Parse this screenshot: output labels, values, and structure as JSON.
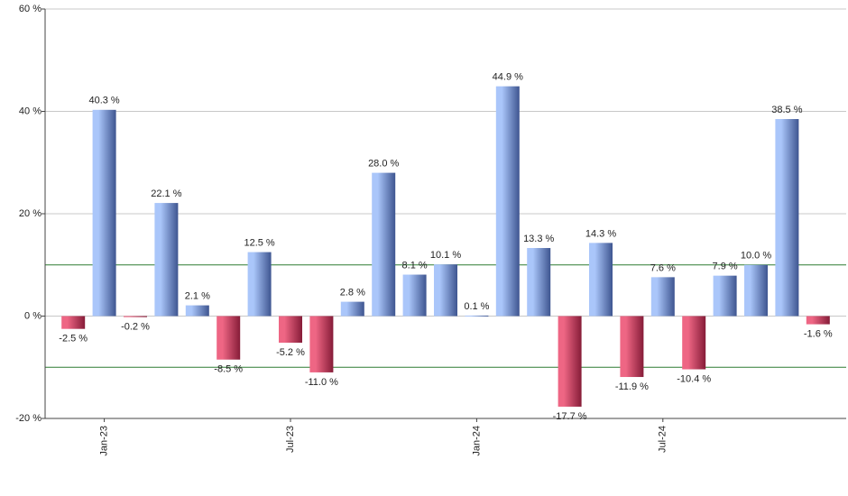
{
  "chart_data": {
    "type": "bar",
    "categories": [
      null,
      "Jan-23",
      null,
      null,
      null,
      null,
      null,
      "Jul-23",
      null,
      null,
      null,
      null,
      null,
      "Jan-24",
      null,
      null,
      null,
      null,
      null,
      "Jul-24",
      null,
      null,
      null,
      null,
      null
    ],
    "values": [
      -2.5,
      40.3,
      -0.2,
      22.1,
      2.1,
      -8.5,
      12.5,
      -5.2,
      -11.0,
      2.8,
      28.0,
      8.1,
      10.1,
      0.1,
      44.9,
      13.3,
      -17.7,
      14.3,
      -11.9,
      7.6,
      -10.4,
      7.9,
      10.0,
      38.5,
      -1.6
    ],
    "value_labels": [
      "-2.5 %",
      "40.3 %",
      "-0.2 %",
      "22.1 %",
      "2.1 %",
      "-8.5 %",
      "12.5 %",
      "-5.2 %",
      "-11.0 %",
      "2.8 %",
      "28.0 %",
      "8.1 %",
      "10.1 %",
      "0.1 %",
      "44.9 %",
      "13.3 %",
      "-17.7 %",
      "14.3 %",
      "-11.9 %",
      "7.6 %",
      "-10.4 %",
      "7.9 %",
      "10.0 %",
      "38.5 %",
      "-1.6 %"
    ],
    "colors": {
      "positive": [
        "#aac6fa",
        "#3e5590"
      ],
      "negative": [
        "#ee6684",
        "#861c38"
      ]
    },
    "ylim": [
      -20,
      60
    ],
    "yticks": [
      {
        "value": -20,
        "label": "-20 %"
      },
      {
        "value": 0,
        "label": "0 %"
      },
      {
        "value": 20,
        "label": "20 %"
      },
      {
        "value": 40,
        "label": "40 %"
      },
      {
        "value": 60,
        "label": "60 %"
      }
    ],
    "reference_lines": [
      10,
      -10
    ],
    "reference_color": "#2e7d32",
    "grid": true
  }
}
